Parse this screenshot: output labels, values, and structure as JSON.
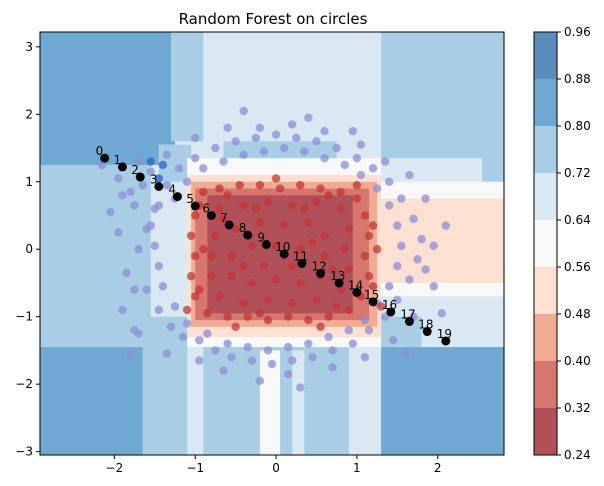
{
  "chart_data": {
    "type": "contourf",
    "title": "Random Forest on circles",
    "xlabel": "",
    "ylabel": "",
    "xlim": [
      -2.92,
      2.82
    ],
    "ylim": [
      -3.05,
      3.22
    ],
    "x_ticks": [
      -2,
      -1,
      0,
      1,
      2
    ],
    "y_ticks": [
      -3,
      -2,
      -1,
      0,
      1,
      2,
      3
    ],
    "colorbar": {
      "levels": [
        0.24,
        0.32,
        0.4,
        0.48,
        0.56,
        0.64,
        0.72,
        0.8,
        0.88,
        0.96
      ],
      "colors": [
        "#b2505a",
        "#d6766e",
        "#f0ab92",
        "#fde0d2",
        "#f8f8f8",
        "#d9e8f3",
        "#a8cde4",
        "#6fa8d2",
        "#5b8cbb"
      ]
    },
    "regions": [
      {
        "x0": -2.92,
        "x1": 2.82,
        "y0": -3.05,
        "y1": 3.22,
        "level": 5
      },
      {
        "x0": -2.92,
        "x1": -1.45,
        "y0": 1.25,
        "y1": 3.22,
        "level": 7
      },
      {
        "x0": -2.92,
        "x1": -1.25,
        "y0": 1.55,
        "y1": 3.22,
        "level": 7
      },
      {
        "x0": -1.45,
        "x1": -1.05,
        "y0": 1.0,
        "y1": 1.55,
        "level": 6
      },
      {
        "x0": -1.3,
        "x1": -0.9,
        "y0": 1.6,
        "y1": 3.22,
        "level": 6
      },
      {
        "x0": 1.3,
        "x1": 2.82,
        "y0": 1.35,
        "y1": 3.22,
        "level": 6
      },
      {
        "x0": 2.55,
        "x1": 2.82,
        "y0": 1.0,
        "y1": 3.22,
        "level": 6
      },
      {
        "x0": -0.65,
        "x1": 0.75,
        "y0": 1.2,
        "y1": 1.6,
        "level": 6
      },
      {
        "x0": -2.92,
        "x1": -1.1,
        "y0": -3.05,
        "y1": -1.45,
        "level": 7
      },
      {
        "x0": -1.65,
        "x1": -1.1,
        "y0": -3.05,
        "y1": -1.0,
        "level": 6
      },
      {
        "x0": 1.3,
        "x1": 2.82,
        "y0": -3.05,
        "y1": -1.45,
        "level": 7
      },
      {
        "x0": 1.3,
        "x1": 1.8,
        "y0": -1.45,
        "y1": -1.0,
        "level": 6
      },
      {
        "x0": -2.92,
        "x1": -1.55,
        "y0": -1.45,
        "y1": 1.25,
        "level": 6
      },
      {
        "x0": -0.9,
        "x1": 0.9,
        "y0": -3.05,
        "y1": -1.35,
        "level": 6
      },
      {
        "x0": -1.1,
        "x1": 1.3,
        "y0": -1.45,
        "y1": 1.35,
        "level": 4
      },
      {
        "x0": 1.0,
        "x1": 2.82,
        "y0": 0.75,
        "y1": 1.0,
        "level": 4
      },
      {
        "x0": 1.0,
        "x1": 2.82,
        "y0": -0.5,
        "y1": 0.75,
        "level": 3
      },
      {
        "x0": 1.0,
        "x1": 2.82,
        "y0": -0.7,
        "y1": -0.5,
        "level": 4
      },
      {
        "x0": -1.1,
        "x1": 1.3,
        "y0": -1.3,
        "y1": 1.1,
        "level": 3
      },
      {
        "x0": -1.05,
        "x1": 1.25,
        "y0": -1.15,
        "y1": 1.0,
        "level": 2
      },
      {
        "x0": -1.0,
        "x1": 1.15,
        "y0": -1.05,
        "y1": 0.9,
        "level": 1
      },
      {
        "x0": -0.85,
        "x1": 0.95,
        "y0": -0.95,
        "y1": 0.8,
        "level": 0
      },
      {
        "x0": -0.2,
        "x1": 0.05,
        "y0": -3.05,
        "y1": -1.5,
        "level": 4
      },
      {
        "x0": 0.2,
        "x1": 0.35,
        "y0": -3.05,
        "y1": -1.5,
        "level": 5
      }
    ],
    "scatter_outer": {
      "color": "#8c8fd6",
      "points": [
        [
          -2.15,
          1.25
        ],
        [
          -1.95,
          1.05
        ],
        [
          -1.8,
          0.85
        ],
        [
          -1.7,
          1.3
        ],
        [
          -1.55,
          1.15
        ],
        [
          -1.5,
          0.6
        ],
        [
          -1.6,
          0.3
        ],
        [
          -1.7,
          0.0
        ],
        [
          -1.85,
          -0.35
        ],
        [
          -1.6,
          -0.6
        ],
        [
          -1.45,
          -0.9
        ],
        [
          -1.3,
          -1.15
        ],
        [
          -1.15,
          -1.3
        ],
        [
          -0.95,
          -1.35
        ],
        [
          -0.75,
          -1.5
        ],
        [
          -0.55,
          -1.6
        ],
        [
          -0.3,
          -1.65
        ],
        [
          -0.05,
          -1.7
        ],
        [
          0.2,
          -1.65
        ],
        [
          0.45,
          -1.6
        ],
        [
          0.7,
          -1.5
        ],
        [
          0.95,
          -1.4
        ],
        [
          1.15,
          -1.2
        ],
        [
          1.35,
          -1.0
        ],
        [
          1.5,
          -0.75
        ],
        [
          1.65,
          -0.45
        ],
        [
          1.75,
          -0.15
        ],
        [
          1.8,
          0.15
        ],
        [
          1.7,
          0.45
        ],
        [
          1.55,
          0.75
        ],
        [
          1.4,
          1.0
        ],
        [
          1.2,
          1.2
        ],
        [
          1.0,
          1.35
        ],
        [
          0.75,
          1.5
        ],
        [
          0.5,
          1.6
        ],
        [
          0.25,
          1.65
        ],
        [
          0.0,
          1.7
        ],
        [
          -0.25,
          1.65
        ],
        [
          -0.5,
          1.6
        ],
        [
          -0.75,
          1.5
        ],
        [
          -1.0,
          1.35
        ],
        [
          -1.2,
          1.2
        ],
        [
          -1.35,
          0.95
        ],
        [
          -1.45,
          0.65
        ],
        [
          -1.55,
          0.35
        ],
        [
          -1.5,
          0.05
        ],
        [
          -1.45,
          -0.25
        ],
        [
          -1.4,
          -0.55
        ],
        [
          -1.25,
          -0.85
        ],
        [
          -1.1,
          -1.1
        ],
        [
          -0.85,
          -1.25
        ],
        [
          -0.6,
          -1.4
        ],
        [
          -0.35,
          -1.45
        ],
        [
          -0.1,
          -1.5
        ],
        [
          0.15,
          -1.45
        ],
        [
          0.4,
          -1.4
        ],
        [
          0.65,
          -1.3
        ],
        [
          0.9,
          -1.2
        ],
        [
          1.1,
          -1.05
        ],
        [
          1.25,
          -0.8
        ],
        [
          1.4,
          -0.55
        ],
        [
          1.5,
          -0.25
        ],
        [
          1.55,
          0.05
        ],
        [
          1.5,
          0.35
        ],
        [
          1.4,
          0.65
        ],
        [
          1.25,
          0.9
        ],
        [
          1.05,
          1.1
        ],
        [
          0.85,
          1.25
        ],
        [
          0.6,
          1.35
        ],
        [
          0.35,
          1.45
        ],
        [
          0.1,
          1.5
        ],
        [
          -0.15,
          1.45
        ],
        [
          -0.4,
          1.4
        ],
        [
          -0.65,
          1.3
        ],
        [
          -0.9,
          1.2
        ],
        [
          -1.1,
          1.0
        ],
        [
          -1.25,
          0.75
        ],
        [
          -2.05,
          0.55
        ],
        [
          -1.9,
          -0.9
        ],
        [
          -1.75,
          -1.2
        ],
        [
          -1.8,
          -1.55
        ],
        [
          -1.35,
          -1.55
        ],
        [
          -0.65,
          -1.8
        ],
        [
          -0.2,
          -1.95
        ],
        [
          0.15,
          -1.85
        ],
        [
          0.3,
          -2.05
        ],
        [
          0.7,
          -1.75
        ],
        [
          1.1,
          -1.6
        ],
        [
          1.45,
          -1.35
        ],
        [
          1.7,
          -1.0
        ],
        [
          1.95,
          -0.55
        ],
        [
          1.95,
          0.05
        ],
        [
          2.1,
          0.35
        ],
        [
          1.85,
          0.75
        ],
        [
          1.65,
          1.1
        ],
        [
          1.35,
          1.3
        ],
        [
          1.05,
          1.55
        ],
        [
          0.6,
          1.75
        ],
        [
          0.2,
          1.85
        ],
        [
          -0.2,
          1.8
        ],
        [
          -0.6,
          1.8
        ],
        [
          -1.0,
          1.65
        ],
        [
          -1.35,
          1.4
        ],
        [
          -1.65,
          0.95
        ],
        [
          -1.75,
          0.65
        ],
        [
          -1.95,
          0.25
        ],
        [
          -1.75,
          -0.6
        ],
        [
          2.05,
          -0.95
        ],
        [
          -0.4,
          2.05
        ],
        [
          0.4,
          1.95
        ],
        [
          -1.9,
          0.8
        ],
        [
          1.6,
          -1.55
        ],
        [
          -1.7,
          -1.25
        ],
        [
          -0.95,
          -1.65
        ],
        [
          0.95,
          1.75
        ],
        [
          1.85,
          -0.3
        ]
      ]
    },
    "scatter_inner": {
      "color": "#c33535",
      "points": [
        [
          -0.9,
          0.85
        ],
        [
          -0.7,
          0.9
        ],
        [
          -0.45,
          0.95
        ],
        [
          -0.2,
          0.95
        ],
        [
          0.05,
          0.9
        ],
        [
          0.3,
          0.95
        ],
        [
          0.55,
          0.9
        ],
        [
          0.8,
          0.85
        ],
        [
          1.0,
          0.75
        ],
        [
          1.1,
          0.5
        ],
        [
          1.15,
          0.2
        ],
        [
          1.1,
          -0.1
        ],
        [
          1.15,
          -0.4
        ],
        [
          1.05,
          -0.7
        ],
        [
          0.9,
          -0.9
        ],
        [
          0.65,
          -1.0
        ],
        [
          0.4,
          -1.05
        ],
        [
          0.15,
          -1.0
        ],
        [
          -0.1,
          -1.05
        ],
        [
          -0.35,
          -1.0
        ],
        [
          -0.6,
          -1.0
        ],
        [
          -0.85,
          -0.95
        ],
        [
          -1.0,
          -0.7
        ],
        [
          -1.05,
          -0.4
        ],
        [
          -1.0,
          -0.1
        ],
        [
          -1.05,
          0.2
        ],
        [
          -1.0,
          0.5
        ],
        [
          -0.7,
          0.6
        ],
        [
          -0.4,
          0.65
        ],
        [
          -0.1,
          0.7
        ],
        [
          0.2,
          0.65
        ],
        [
          0.5,
          0.7
        ],
        [
          0.8,
          0.6
        ],
        [
          0.9,
          0.3
        ],
        [
          0.85,
          0.0
        ],
        [
          0.9,
          -0.3
        ],
        [
          0.8,
          -0.6
        ],
        [
          0.5,
          -0.75
        ],
        [
          0.2,
          -0.8
        ],
        [
          -0.1,
          -0.75
        ],
        [
          -0.4,
          -0.8
        ],
        [
          -0.7,
          -0.7
        ],
        [
          -0.8,
          -0.4
        ],
        [
          -0.8,
          -0.1
        ],
        [
          -0.75,
          0.2
        ],
        [
          -0.5,
          0.3
        ],
        [
          -0.2,
          0.4
        ],
        [
          0.1,
          0.35
        ],
        [
          0.4,
          0.4
        ],
        [
          0.6,
          0.2
        ],
        [
          0.6,
          -0.1
        ],
        [
          0.55,
          -0.4
        ],
        [
          0.3,
          -0.5
        ],
        [
          0.0,
          -0.45
        ],
        [
          -0.3,
          -0.5
        ],
        [
          -0.55,
          -0.4
        ],
        [
          -0.55,
          -0.1
        ],
        [
          -0.3,
          0.05
        ],
        [
          0.0,
          0.05
        ],
        [
          0.3,
          0.0
        ],
        [
          -0.95,
          0.65
        ],
        [
          -0.6,
          0.8
        ],
        [
          0.65,
          0.8
        ],
        [
          1.2,
          0.35
        ],
        [
          1.2,
          -0.55
        ],
        [
          0.75,
          -0.85
        ],
        [
          -0.2,
          -0.95
        ],
        [
          -0.95,
          -0.6
        ],
        [
          -0.9,
          0.0
        ],
        [
          1.25,
          0.0
        ],
        [
          0.45,
          0.1
        ],
        [
          -0.15,
          -0.25
        ],
        [
          0.2,
          -0.25
        ],
        [
          -0.4,
          -0.25
        ],
        [
          -0.65,
          0.45
        ],
        [
          0.35,
          0.6
        ],
        [
          0.7,
          -0.3
        ],
        [
          -0.25,
          0.6
        ],
        [
          1.0,
          0.95
        ],
        [
          -1.1,
          -0.9
        ],
        [
          1.3,
          -0.85
        ],
        [
          0.0,
          1.05
        ],
        [
          -0.5,
          -1.15
        ],
        [
          0.55,
          -1.15
        ]
      ]
    },
    "scatter_blue": {
      "color": "#3a6cc8",
      "points": [
        [
          -1.4,
          1.25
        ],
        [
          -1.45,
          1.05
        ],
        [
          -1.55,
          1.3
        ]
      ]
    },
    "path": {
      "color": "#000000",
      "points": [
        [
          -2.12,
          1.35
        ],
        [
          -1.9,
          1.22
        ],
        [
          -1.68,
          1.07
        ],
        [
          -1.45,
          0.93
        ],
        [
          -1.22,
          0.78
        ],
        [
          -1.0,
          0.64
        ],
        [
          -0.8,
          0.5
        ],
        [
          -0.58,
          0.36
        ],
        [
          -0.35,
          0.21
        ],
        [
          -0.12,
          0.07
        ],
        [
          0.1,
          -0.07
        ],
        [
          0.32,
          -0.21
        ],
        [
          0.55,
          -0.36
        ],
        [
          0.78,
          -0.5
        ],
        [
          1.0,
          -0.64
        ],
        [
          1.2,
          -0.78
        ],
        [
          1.42,
          -0.93
        ],
        [
          1.65,
          -1.07
        ],
        [
          1.87,
          -1.22
        ],
        [
          2.1,
          -1.36
        ]
      ],
      "labels": [
        "0",
        "1",
        "2",
        "3",
        "4",
        "5",
        "6",
        "7",
        "8",
        "9",
        "10",
        "11",
        "12",
        "13",
        "14",
        "15",
        "16",
        "17",
        "18",
        "19"
      ]
    }
  }
}
